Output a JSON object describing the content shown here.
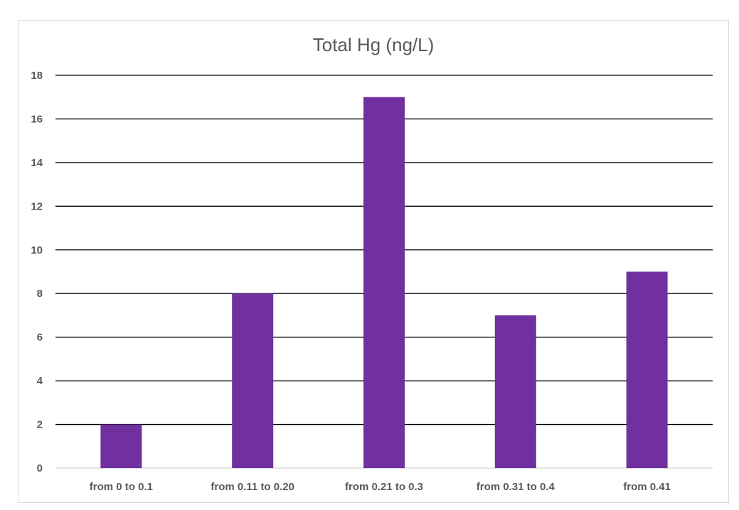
{
  "chart_data": {
    "type": "bar",
    "title": "Total Hg (ng/L)",
    "xlabel": "",
    "ylabel": "",
    "categories": [
      "from 0 to 0.1",
      "from 0.11 to 0.20",
      "from 0.21 to 0.3",
      "from 0.31 to 0.4",
      "from 0.41"
    ],
    "values": [
      2,
      8,
      17,
      7,
      9
    ],
    "ylim": [
      0,
      18
    ],
    "yticks": [
      "0",
      "2",
      "4",
      "6",
      "8",
      "10",
      "12",
      "14",
      "16",
      "18"
    ],
    "grid": true,
    "legend": "none",
    "colors": {
      "bar": "#7030a0",
      "gridline": "#000000",
      "axis": "#d9d9d9"
    }
  }
}
